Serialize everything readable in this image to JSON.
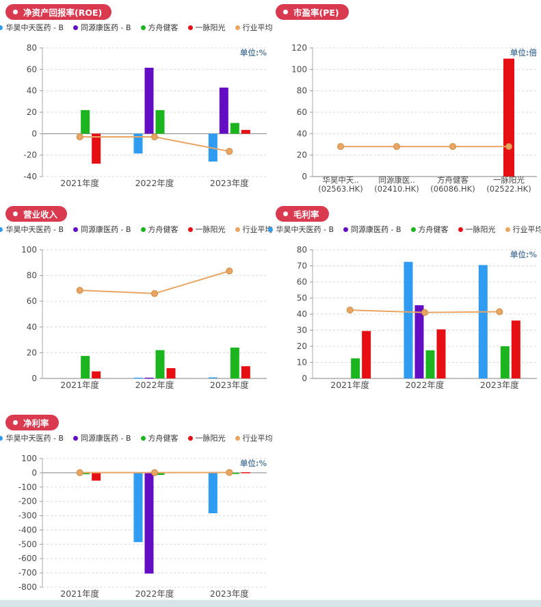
{
  "page": {
    "background": "#ffffff",
    "footer_scrollbar_color": "#d7e5eb"
  },
  "colors": {
    "badge": "#d93a50",
    "grid": "#d7d7d7",
    "zero_axis": "#808080",
    "axis_line": "#aaaaaa",
    "tick_text": "#4a4a4a",
    "unit_text": "#5e82a3"
  },
  "chart_data": [
    {
      "id": "roe",
      "type": "bar",
      "title": "净资产回报率(ROE)",
      "unit_label": "单位:%",
      "legend_visible": true,
      "categories": [
        "2021年度",
        "2022年度",
        "2023年度"
      ],
      "ylim": [
        -40,
        80
      ],
      "ytick_step": 20,
      "series": [
        {
          "name": "华昊中天医药 - B",
          "kind": "bar",
          "color": "#2F9CF2",
          "values": [
            null,
            -18.5,
            -26
          ]
        },
        {
          "name": "同源康医药 - B",
          "kind": "bar",
          "color": "#640EC4",
          "values": [
            null,
            61.5,
            43
          ]
        },
        {
          "name": "方舟健客",
          "kind": "bar",
          "color": "#1CB51F",
          "values": [
            22,
            22,
            10
          ]
        },
        {
          "name": "一脉阳光",
          "kind": "bar",
          "color": "#E60F13",
          "values": [
            -28,
            null,
            3.5
          ]
        },
        {
          "name": "行业平均",
          "kind": "line",
          "color": "#E8A563",
          "values": [
            -3,
            -3,
            -16.5
          ]
        }
      ]
    },
    {
      "id": "pe",
      "type": "bar",
      "title": "市盈率(PE)",
      "unit_label": "单位:倍",
      "legend_visible": false,
      "categories": [
        [
          "华昊中天..",
          "(02563.HK)"
        ],
        [
          "同源康医..",
          "(02410.HK)"
        ],
        [
          "方舟健客",
          "(06086.HK)"
        ],
        [
          "一脉阳光",
          "(02522.HK)"
        ]
      ],
      "ylim": [
        0,
        120
      ],
      "ytick_step": 20,
      "series": [
        {
          "name": "市盈率",
          "kind": "bar",
          "color": "#E60F13",
          "values": [
            null,
            null,
            null,
            110
          ]
        },
        {
          "name": "行业平均",
          "kind": "line",
          "color": "#E8A563",
          "values": [
            28,
            28,
            28,
            28
          ]
        }
      ]
    },
    {
      "id": "revenue",
      "type": "bar",
      "title": "营业收入",
      "unit_label": null,
      "legend_visible": true,
      "categories": [
        "2021年度",
        "2022年度",
        "2023年度"
      ],
      "ylim": [
        0,
        100
      ],
      "ytick_step": 20,
      "series": [
        {
          "name": "华昊中天医药 - B",
          "kind": "bar",
          "color": "#2F9CF2",
          "values": [
            null,
            0.6,
            0.8
          ]
        },
        {
          "name": "同源康医药 - B",
          "kind": "bar",
          "color": "#640EC4",
          "values": [
            null,
            0.6,
            null
          ]
        },
        {
          "name": "方舟健客",
          "kind": "bar",
          "color": "#1CB51F",
          "values": [
            17.5,
            22,
            24
          ]
        },
        {
          "name": "一脉阳光",
          "kind": "bar",
          "color": "#E60F13",
          "values": [
            5.5,
            8,
            9.5
          ]
        },
        {
          "name": "行业平均",
          "kind": "line",
          "color": "#E8A563",
          "values": [
            68.5,
            66,
            83.5
          ]
        }
      ]
    },
    {
      "id": "gross-margin",
      "type": "bar",
      "title": "毛利率",
      "unit_label": "单位:%",
      "legend_visible": true,
      "categories": [
        "2021年度",
        "2022年度",
        "2023年度"
      ],
      "ylim": [
        0,
        80
      ],
      "ytick_step": 10,
      "series": [
        {
          "name": "华昊中天医药 - B",
          "kind": "bar",
          "color": "#2F9CF2",
          "values": [
            null,
            72.5,
            70.5
          ]
        },
        {
          "name": "同源康医药 - B",
          "kind": "bar",
          "color": "#640EC4",
          "values": [
            null,
            45.5,
            null
          ]
        },
        {
          "name": "方舟健客",
          "kind": "bar",
          "color": "#1CB51F",
          "values": [
            12.5,
            17.5,
            20
          ]
        },
        {
          "name": "一脉阳光",
          "kind": "bar",
          "color": "#E60F13",
          "values": [
            29.5,
            30.5,
            36
          ]
        },
        {
          "name": "行业平均",
          "kind": "line",
          "color": "#E8A563",
          "values": [
            42.5,
            41,
            41.5
          ]
        }
      ]
    },
    {
      "id": "net-margin",
      "type": "bar",
      "title": "净利率",
      "unit_label": "单位:%",
      "legend_visible": true,
      "categories": [
        "2021年度",
        "2022年度",
        "2023年度"
      ],
      "ylim": [
        -800,
        100
      ],
      "ytick_step": 100,
      "series": [
        {
          "name": "华昊中天医药 - B",
          "kind": "bar",
          "color": "#2F9CF2",
          "values": [
            null,
            -485,
            -283
          ]
        },
        {
          "name": "同源康医药 - B",
          "kind": "bar",
          "color": "#640EC4",
          "values": [
            null,
            -705,
            null
          ]
        },
        {
          "name": "方舟健客",
          "kind": "bar",
          "color": "#1CB51F",
          "values": [
            -10,
            -15,
            -8
          ]
        },
        {
          "name": "一脉阳光",
          "kind": "bar",
          "color": "#E60F13",
          "values": [
            -55,
            null,
            4
          ]
        },
        {
          "name": "行业平均",
          "kind": "line",
          "color": "#E8A563",
          "values": [
            1,
            1,
            2
          ]
        }
      ]
    }
  ]
}
